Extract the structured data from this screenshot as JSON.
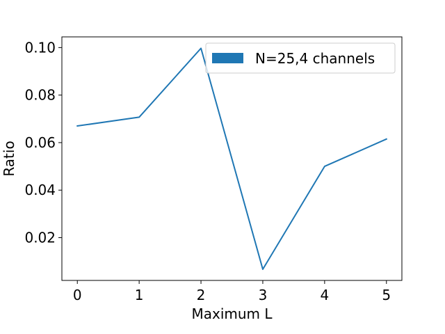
{
  "chart_data": {
    "type": "line",
    "x": [
      0,
      1,
      2,
      3,
      4,
      5
    ],
    "series": [
      {
        "name": "N=25,4 channels",
        "values": [
          0.067,
          0.0707,
          0.0997,
          0.0067,
          0.05,
          0.0615
        ],
        "color": "#1f77b4"
      }
    ],
    "xlabel": "Maximum L",
    "ylabel": "Ratio",
    "xlim": [
      -0.25,
      5.25
    ],
    "ylim": [
      0.002,
      0.1045
    ],
    "xticks": [
      "0",
      "1",
      "2",
      "3",
      "4",
      "5"
    ],
    "yticks": [
      "0.02",
      "0.04",
      "0.06",
      "0.08",
      "0.10"
    ],
    "grid": false,
    "legend_position": "top-right"
  }
}
